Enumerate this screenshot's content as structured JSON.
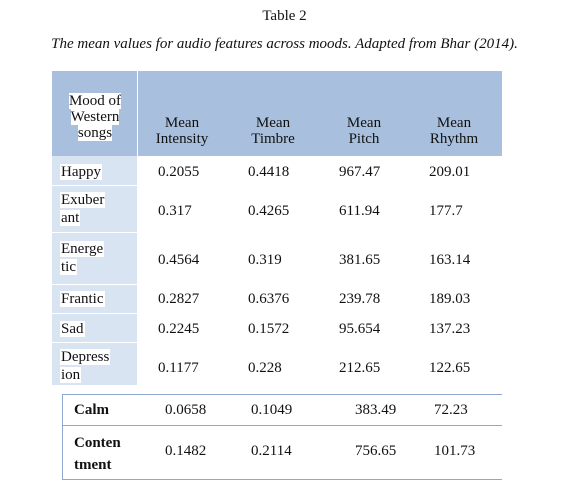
{
  "caption": {
    "title": "Table 2",
    "description": "The mean values for audio features across moods. Adapted from Bhar (2014)."
  },
  "table": {
    "headers": {
      "mood": [
        "Mood of",
        "Western",
        "songs"
      ],
      "intensity": [
        "Mean",
        "Intensity"
      ],
      "timbre": [
        "Mean",
        "Timbre"
      ],
      "pitch": [
        "Mean",
        "Pitch"
      ],
      "rhythm": [
        "Mean",
        "Rhythm"
      ]
    },
    "rows": [
      {
        "mood": [
          "Happy"
        ],
        "intensity": "0.2055",
        "timbre": "0.4418",
        "pitch": "967.47",
        "rhythm": "209.01"
      },
      {
        "mood": [
          "Exuber",
          "ant"
        ],
        "intensity": "0.317",
        "timbre": "0.4265",
        "pitch": "611.94",
        "rhythm": "177.7"
      },
      {
        "mood": [
          "Energe",
          "tic"
        ],
        "intensity": "0.4564",
        "timbre": "0.319",
        "pitch": "381.65",
        "rhythm": "163.14"
      },
      {
        "mood": [
          "Frantic"
        ],
        "intensity": "0.2827",
        "timbre": "0.6376",
        "pitch": "239.78",
        "rhythm": "189.03"
      },
      {
        "mood": [
          "Sad"
        ],
        "intensity": "0.2245",
        "timbre": "0.1572",
        "pitch": "95.654",
        "rhythm": "137.23"
      },
      {
        "mood": [
          "Depress",
          "ion"
        ],
        "intensity": "0.1177",
        "timbre": "0.228",
        "pitch": "212.65",
        "rhythm": "122.65"
      }
    ],
    "extra_rows": [
      {
        "mood": [
          "Calm"
        ],
        "intensity": "0.0658",
        "timbre": "0.1049",
        "pitch": "383.49",
        "rhythm": "72.23"
      },
      {
        "mood": [
          "Conten",
          "tment"
        ],
        "intensity": "0.1482",
        "timbre": "0.2114",
        "pitch": "756.65",
        "rhythm": "101.73"
      }
    ]
  },
  "colors": {
    "header_fill": "#a8c0dd",
    "mood_column_fill": "#d8e4f1",
    "rule": "#8eaad0"
  }
}
